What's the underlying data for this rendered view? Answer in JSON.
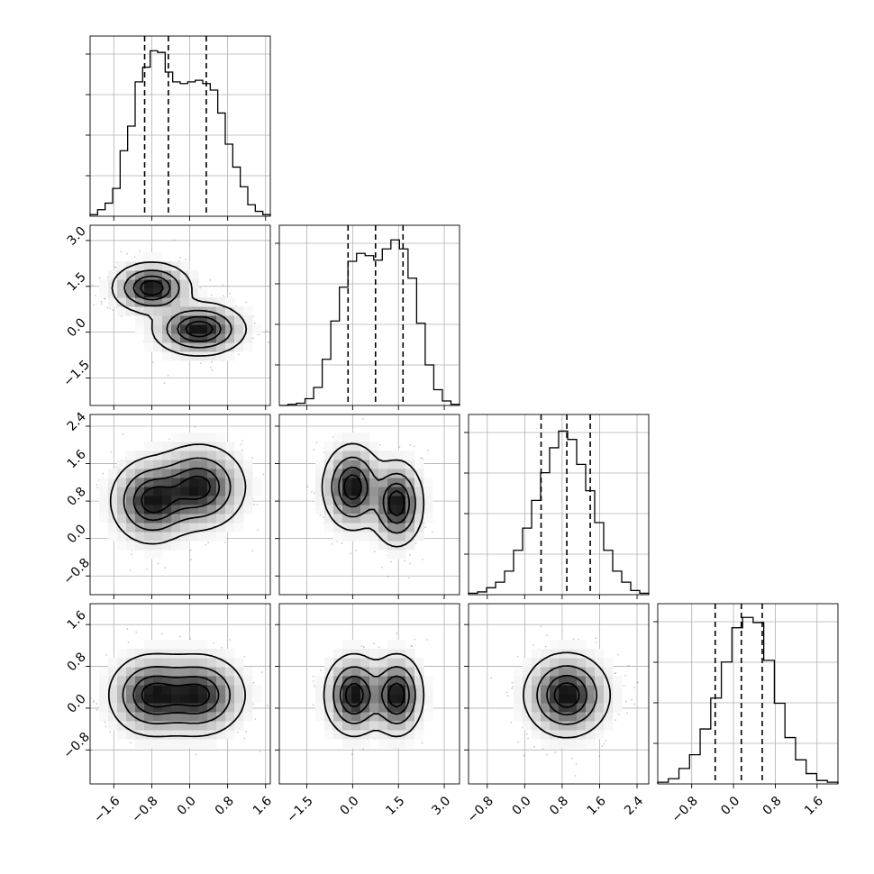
{
  "chart_data": {
    "type": "corner",
    "parameters": [
      {
        "range": [
          -2.1,
          1.7
        ],
        "ticks": [
          -1.6,
          -0.8,
          0.0,
          0.8,
          1.6
        ],
        "tick_labels": [
          "−1.6",
          "−0.8",
          "0.0",
          "0.8",
          "1.6"
        ]
      },
      {
        "range": [
          -2.4,
          3.5
        ],
        "ticks": [
          -1.5,
          0.0,
          1.5,
          3.0
        ],
        "tick_labels": [
          "−1.5",
          "0.0",
          "1.5",
          "3.0"
        ]
      },
      {
        "range": [
          -1.2,
          2.65
        ],
        "ticks": [
          -0.8,
          0.0,
          0.8,
          1.6,
          2.4
        ],
        "tick_labels": [
          "−0.8",
          "0.0",
          "0.8",
          "1.6",
          "2.4"
        ]
      },
      {
        "range": [
          -1.45,
          2.0
        ],
        "ticks": [
          -0.8,
          0.0,
          0.8,
          1.6
        ],
        "tick_labels": [
          "−0.8",
          "0.0",
          "0.8",
          "1.6"
        ]
      }
    ],
    "histograms": [
      {
        "param": 0,
        "bins": [
          -2.1,
          1.7
        ],
        "counts": [
          1,
          4,
          8,
          17,
          40,
          55,
          82,
          91,
          101,
          100,
          88,
          82,
          81,
          82,
          83,
          81,
          77,
          63,
          44,
          30,
          18,
          7,
          3,
          1
        ],
        "quantiles": [
          -0.95,
          -0.45,
          0.35
        ],
        "ylim": [
          0,
          110
        ]
      },
      {
        "param": 1,
        "bins": [
          -2.4,
          3.5
        ],
        "counts": [
          0,
          1,
          2,
          6,
          16,
          41,
          75,
          105,
          128,
          135,
          133,
          129,
          139,
          147,
          139,
          113,
          73,
          36,
          14,
          4,
          1
        ],
        "quantiles": [
          -0.15,
          0.75,
          1.65
        ],
        "ylim": [
          0,
          160
        ]
      },
      {
        "param": 2,
        "bins": [
          -1.2,
          2.65
        ],
        "counts": [
          1,
          2,
          5,
          9,
          17,
          32,
          48,
          68,
          88,
          106,
          118,
          112,
          94,
          75,
          52,
          32,
          17,
          9,
          3,
          1
        ],
        "quantiles": [
          0.35,
          0.9,
          1.4
        ],
        "ylim": [
          0,
          130
        ]
      },
      {
        "param": 3,
        "bins": [
          -1.45,
          2.0
        ],
        "counts": [
          1,
          3,
          9,
          17,
          32,
          50,
          71,
          91,
          97,
          94,
          72,
          47,
          27,
          14,
          6,
          2,
          1
        ],
        "quantiles": [
          -0.35,
          0.15,
          0.55
        ],
        "ylim": [
          0,
          105
        ]
      }
    ],
    "joint_densities": [
      {
        "x_param": 0,
        "y_param": 1,
        "components": [
          {
            "mean": [
              -0.8,
              1.45
            ],
            "sd": [
              0.38,
              0.38
            ],
            "weight": 0.5
          },
          {
            "mean": [
              0.2,
              0.1
            ],
            "sd": [
              0.45,
              0.4
            ],
            "weight": 0.5
          }
        ]
      },
      {
        "x_param": 0,
        "y_param": 2,
        "components": [
          {
            "mean": [
              -0.8,
              0.8
            ],
            "sd": [
              0.4,
              0.42
            ],
            "weight": 0.5
          },
          {
            "mean": [
              0.2,
              1.1
            ],
            "sd": [
              0.45,
              0.42
            ],
            "weight": 0.5
          }
        ]
      },
      {
        "x_param": 1,
        "y_param": 2,
        "components": [
          {
            "mean": [
              0.0,
              1.1
            ],
            "sd": [
              0.45,
              0.42
            ],
            "weight": 0.5
          },
          {
            "mean": [
              1.45,
              0.75
            ],
            "sd": [
              0.4,
              0.42
            ],
            "weight": 0.5
          }
        ]
      },
      {
        "x_param": 0,
        "y_param": 3,
        "components": [
          {
            "mean": [
              -0.8,
              0.25
            ],
            "sd": [
              0.42,
              0.36
            ],
            "weight": 0.5
          },
          {
            "mean": [
              0.2,
              0.25
            ],
            "sd": [
              0.45,
              0.36
            ],
            "weight": 0.5
          }
        ]
      },
      {
        "x_param": 1,
        "y_param": 3,
        "components": [
          {
            "mean": [
              0.05,
              0.25
            ],
            "sd": [
              0.45,
              0.36
            ],
            "weight": 0.5
          },
          {
            "mean": [
              1.45,
              0.25
            ],
            "sd": [
              0.4,
              0.36
            ],
            "weight": 0.5
          }
        ]
      },
      {
        "x_param": 2,
        "y_param": 3,
        "components": [
          {
            "mean": [
              0.9,
              0.25
            ],
            "sd": [
              0.42,
              0.37
            ],
            "weight": 1.0
          }
        ]
      }
    ],
    "contour_levels": [
      0.118,
      0.393,
      0.675,
      0.865
    ],
    "grid": true
  }
}
